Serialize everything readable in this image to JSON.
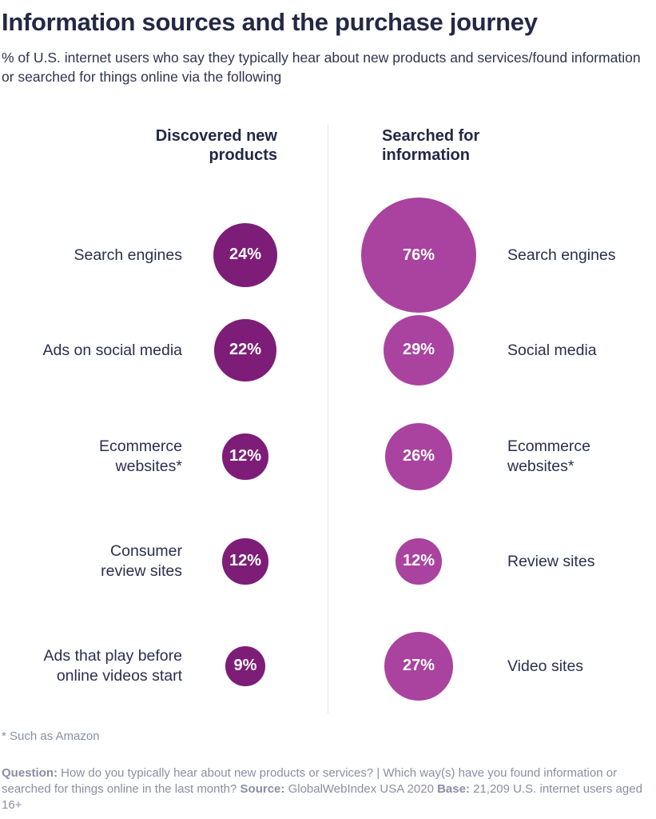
{
  "title": "Information sources and the purchase journey",
  "subtitle": "% of U.S. internet users who say they typically hear about new products and services/found information or searched for things online via the following",
  "colors": {
    "left_bubble": "#7d1d78",
    "right_bubble": "#a9439f",
    "divider": "#e3e3e8"
  },
  "chart_data": {
    "type": "bubble",
    "unit": "%",
    "series": [
      {
        "name": "Discovered new products",
        "categories": [
          "Search engines",
          "Ads on social media",
          "Ecommerce websites*",
          "Consumer review sites",
          "Ads that play before online videos start"
        ],
        "values": [
          24,
          22,
          12,
          12,
          9
        ],
        "labels": [
          "24%",
          "22%",
          "12%",
          "12%",
          "9%"
        ]
      },
      {
        "name": "Searched for information",
        "categories": [
          "Search engines",
          "Social media",
          "Ecommerce websites*",
          "Review sites",
          "Video sites"
        ],
        "values": [
          76,
          29,
          26,
          12,
          27
        ],
        "labels": [
          "76%",
          "29%",
          "26%",
          "12%",
          "27%"
        ]
      }
    ],
    "column_headers": {
      "left": "Discovered new products",
      "right": "Searched for information"
    }
  },
  "footnote": "* Such as Amazon",
  "source": {
    "question_label": "Question:",
    "question_text": "How do you typically hear about new products or services? | Which way(s) have you found information or searched for things online in the last month?",
    "source_label": "Source:",
    "source_text": "GlobalWebIndex USA 2020",
    "base_label": "Base:",
    "base_text": "21,209 U.S. internet users aged 16+"
  }
}
